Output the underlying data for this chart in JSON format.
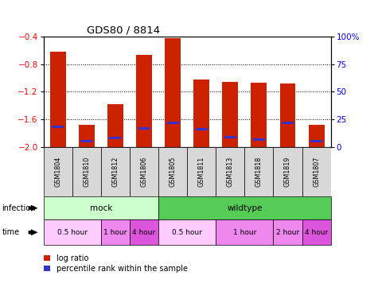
{
  "title": "GDS80 / 8814",
  "samples": [
    "GSM1804",
    "GSM1810",
    "GSM1812",
    "GSM1806",
    "GSM1805",
    "GSM1811",
    "GSM1813",
    "GSM1818",
    "GSM1819",
    "GSM1807"
  ],
  "log_ratio": [
    -0.62,
    -1.68,
    -1.38,
    -0.67,
    -0.43,
    -1.02,
    -1.06,
    -1.07,
    -1.08,
    -1.68
  ],
  "percentile_rank": [
    18,
    5,
    8,
    17,
    22,
    16,
    9,
    7,
    22,
    5
  ],
  "ylim_left": [
    -2.0,
    -0.4
  ],
  "ylim_right": [
    0,
    100
  ],
  "yticks_left": [
    -2.0,
    -1.6,
    -1.2,
    -0.8,
    -0.4
  ],
  "yticks_right": [
    0,
    25,
    50,
    75,
    100
  ],
  "bar_color_red": "#cc2200",
  "bar_color_blue": "#3333cc",
  "bar_width": 0.55,
  "infection_row": [
    {
      "label": "mock",
      "start": 0,
      "end": 4,
      "color": "#ccffcc"
    },
    {
      "label": "wildtype",
      "start": 4,
      "end": 10,
      "color": "#55cc55"
    }
  ],
  "time_row": [
    {
      "label": "0.5 hour",
      "start": 0,
      "end": 2,
      "color": "#ffccff"
    },
    {
      "label": "1 hour",
      "start": 2,
      "end": 3,
      "color": "#ee88ee"
    },
    {
      "label": "4 hour",
      "start": 3,
      "end": 4,
      "color": "#dd55dd"
    },
    {
      "label": "0.5 hour",
      "start": 4,
      "end": 6,
      "color": "#ffccff"
    },
    {
      "label": "1 hour",
      "start": 6,
      "end": 8,
      "color": "#ee88ee"
    },
    {
      "label": "2 hour",
      "start": 8,
      "end": 9,
      "color": "#ee88ee"
    },
    {
      "label": "4 hour",
      "start": 9,
      "end": 10,
      "color": "#dd55dd"
    }
  ],
  "legend_items": [
    {
      "label": "log ratio",
      "color": "#cc2200"
    },
    {
      "label": "percentile rank within the sample",
      "color": "#3333cc"
    }
  ],
  "fig_width": 4.75,
  "fig_height": 3.66
}
